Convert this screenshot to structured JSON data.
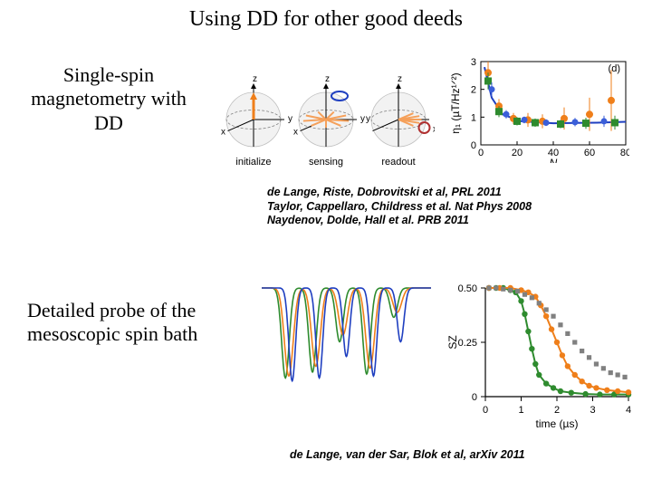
{
  "title": "Using DD for other good deeds",
  "section1": {
    "heading": "Single-spin magnetometry with DD",
    "spheres": {
      "labels": [
        "initialize",
        "sensing",
        "readout"
      ],
      "z": "z",
      "x": "x",
      "y": "y",
      "sphere_fill": "#f2f2f2",
      "axis_color": "#000000",
      "arrow1": "#ef7f1a",
      "arrow_multi": "#f5a05a",
      "ellipse": "#1f3fc0",
      "ring": "#b03030",
      "dash": "#808080"
    },
    "eta_chart": {
      "type": "scatter-line",
      "panel_label": "(d)",
      "xlabel": "N",
      "ylabel_html": "η₁ (µT/Hz¹ᐟ²)",
      "xlim": [
        0,
        80
      ],
      "xticks": [
        0,
        20,
        40,
        60,
        80
      ],
      "ylim": [
        0,
        3
      ],
      "yticks": [
        0,
        1,
        2,
        3
      ],
      "line": {
        "x": [
          2,
          6,
          12,
          22,
          40,
          64,
          80
        ],
        "y": [
          2.8,
          1.7,
          1.1,
          0.85,
          0.78,
          0.8,
          0.83
        ],
        "color": "#1f3fc0",
        "width": 2
      },
      "series": [
        {
          "name": "orange",
          "color": "#ef7f1a",
          "marker": "circle",
          "size": 4,
          "x": [
            4,
            10,
            18,
            26,
            34,
            46,
            60,
            72
          ],
          "y": [
            2.6,
            1.4,
            0.95,
            0.9,
            0.85,
            0.95,
            1.1,
            1.6
          ],
          "yerr": [
            0.4,
            0.25,
            0.2,
            0.25,
            0.25,
            0.4,
            0.6,
            1.1
          ]
        },
        {
          "name": "green",
          "color": "#2e8b2e",
          "marker": "square",
          "size": 4,
          "x": [
            4,
            10,
            20,
            30,
            44,
            58,
            74
          ],
          "y": [
            2.3,
            1.2,
            0.85,
            0.8,
            0.75,
            0.78,
            0.8
          ],
          "yerr": [
            0.3,
            0.2,
            0.15,
            0.15,
            0.15,
            0.2,
            0.25
          ]
        },
        {
          "name": "blue",
          "color": "#3b5fd9",
          "marker": "circle",
          "size": 3.5,
          "x": [
            6,
            14,
            24,
            36,
            52,
            68
          ],
          "y": [
            2.0,
            1.1,
            0.9,
            0.8,
            0.82,
            0.85
          ],
          "yerr": [
            0.25,
            0.15,
            0.12,
            0.12,
            0.15,
            0.2
          ]
        }
      ],
      "text_color": "#000000"
    },
    "refs": [
      "de Lange, Riste, Dobrovitski et al, PRL 2011",
      "Taylor, Cappellaro, Childress et al. Nat Phys 2008",
      "Naydenov, Dolde, Hall et al. PRB 2011"
    ]
  },
  "section2": {
    "heading": "Detailed probe of the mesoscopic spin bath",
    "spectrum": {
      "type": "line",
      "n_series": 3,
      "colors": [
        "#2e8b2e",
        "#ef7f1a",
        "#1f3fc0"
      ],
      "baseline": 1.0,
      "ymin": 0.0,
      "xrange": [
        0,
        100
      ],
      "dips": {
        "green": {
          "centers": [
            14,
            30,
            46,
            62,
            78
          ],
          "depths": [
            0.92,
            0.86,
            0.55,
            0.88,
            0.3
          ],
          "w": 2.2
        },
        "orange": {
          "centers": [
            16,
            32,
            48,
            64,
            80
          ],
          "depths": [
            0.9,
            0.8,
            0.48,
            0.82,
            0.25
          ],
          "w": 2.6
        },
        "blue": {
          "centers": [
            18,
            34,
            50,
            66,
            82
          ],
          "depths": [
            0.95,
            0.92,
            0.7,
            0.9,
            0.55
          ],
          "w": 2.0
        }
      }
    },
    "sz_chart": {
      "type": "scatter-line",
      "ylabel": "SZ",
      "xlabel": "time (µs)",
      "xlim": [
        0,
        4
      ],
      "xticks": [
        0,
        1,
        2,
        3,
        4
      ],
      "ylim": [
        0,
        0.5
      ],
      "yticks": [
        0,
        0.25,
        0.5
      ],
      "yticklabels": [
        "0",
        "0.25",
        "0.50"
      ],
      "series": [
        {
          "name": "green",
          "color": "#2e8b2e",
          "marker": "circle",
          "size": 3.2,
          "line_width": 2,
          "x": [
            0.1,
            0.3,
            0.5,
            0.7,
            0.85,
            1.0,
            1.1,
            1.2,
            1.3,
            1.4,
            1.5,
            1.7,
            1.9,
            2.1,
            2.4,
            2.8,
            3.2,
            3.6,
            4.0
          ],
          "y": [
            0.5,
            0.5,
            0.5,
            0.49,
            0.48,
            0.44,
            0.38,
            0.3,
            0.22,
            0.15,
            0.1,
            0.06,
            0.04,
            0.025,
            0.018,
            0.012,
            0.01,
            0.01,
            0.01
          ]
        },
        {
          "name": "orange",
          "color": "#ef7f1a",
          "marker": "circle",
          "size": 3.2,
          "line_width": 2,
          "x": [
            0.1,
            0.4,
            0.7,
            1.0,
            1.2,
            1.4,
            1.55,
            1.7,
            1.85,
            2.0,
            2.15,
            2.3,
            2.5,
            2.7,
            2.9,
            3.1,
            3.4,
            3.7,
            4.0
          ],
          "y": [
            0.5,
            0.5,
            0.5,
            0.49,
            0.48,
            0.46,
            0.42,
            0.37,
            0.31,
            0.25,
            0.19,
            0.14,
            0.1,
            0.07,
            0.05,
            0.04,
            0.03,
            0.025,
            0.02
          ]
        },
        {
          "name": "gray",
          "color": "#808080",
          "marker": "square",
          "size": 2.6,
          "line_width": 0,
          "x": [
            0.1,
            0.3,
            0.5,
            0.7,
            0.9,
            1.1,
            1.3,
            1.5,
            1.7,
            1.9,
            2.1,
            2.3,
            2.5,
            2.7,
            2.9,
            3.1,
            3.3,
            3.5,
            3.7,
            3.9
          ],
          "y": [
            0.5,
            0.5,
            0.495,
            0.49,
            0.485,
            0.47,
            0.455,
            0.43,
            0.4,
            0.37,
            0.33,
            0.29,
            0.25,
            0.21,
            0.18,
            0.15,
            0.13,
            0.11,
            0.1,
            0.09
          ]
        }
      ]
    },
    "ref": "de Lange, van der Sar, Blok et al, arXiv 2011"
  }
}
